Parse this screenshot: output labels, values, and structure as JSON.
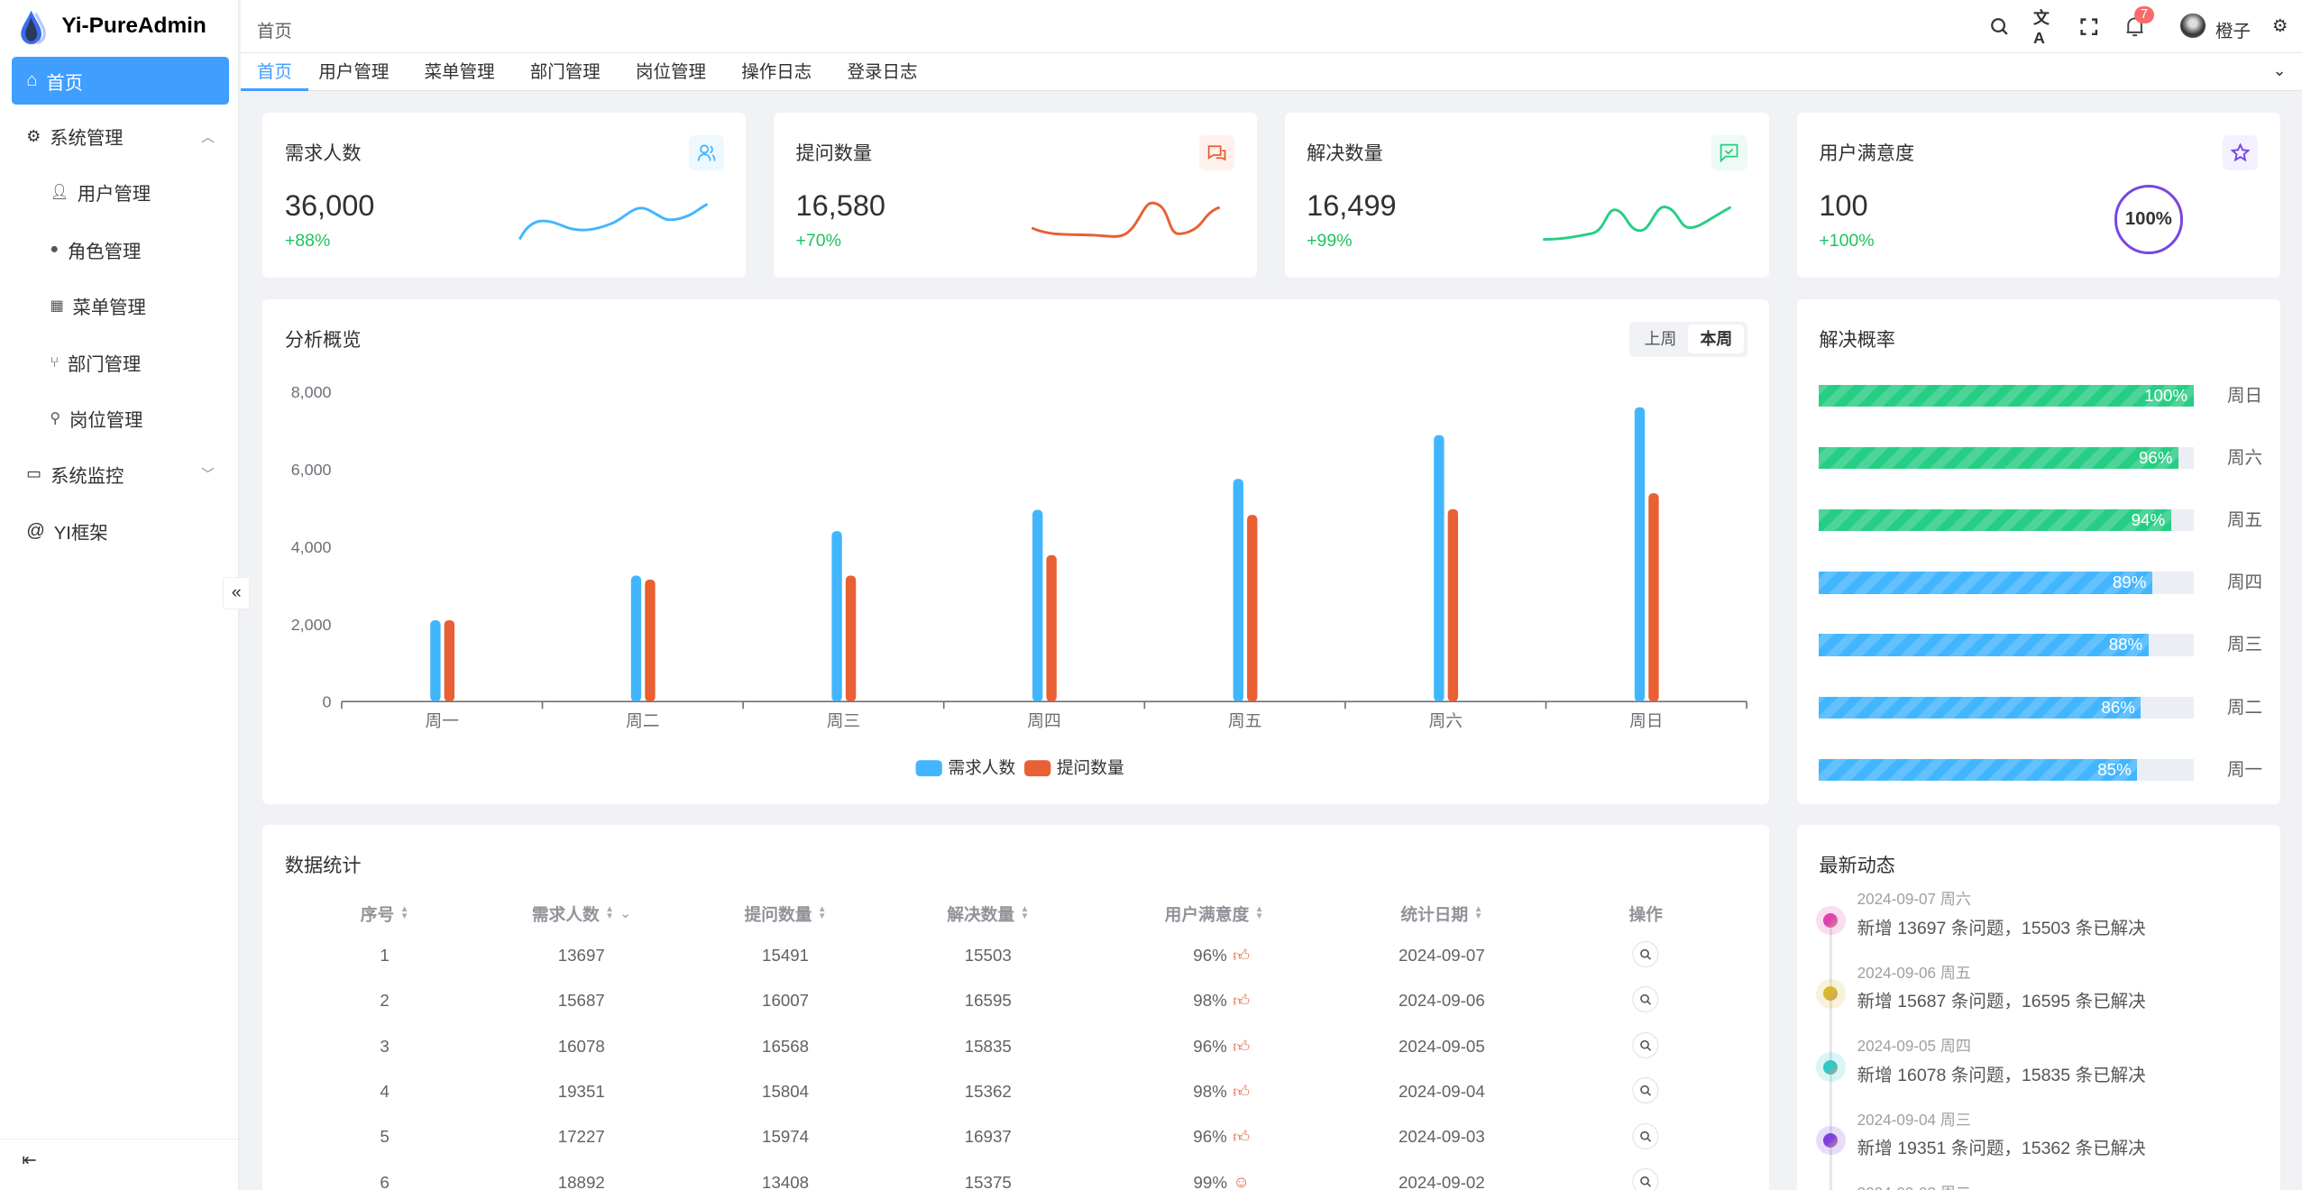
{
  "app": {
    "title": "Yi-PureAdmin"
  },
  "sidebar": {
    "items": [
      {
        "label": "首页",
        "icon": "home-icon",
        "active": true
      },
      {
        "label": "系统管理",
        "icon": "gear-icon",
        "expanded": true
      },
      {
        "label": "用户管理",
        "icon": "user-icon"
      },
      {
        "label": "角色管理",
        "icon": "role-icon"
      },
      {
        "label": "菜单管理",
        "icon": "menu-grid-icon"
      },
      {
        "label": "部门管理",
        "icon": "branch-icon"
      },
      {
        "label": "岗位管理",
        "icon": "org-icon"
      },
      {
        "label": "系统监控",
        "icon": "monitor-icon"
      },
      {
        "label": "YI框架",
        "icon": "at-icon"
      }
    ]
  },
  "header": {
    "breadcrumb": "首页",
    "notification_count": "7",
    "user": "橙子"
  },
  "tabs": [
    "首页",
    "用户管理",
    "菜单管理",
    "部门管理",
    "岗位管理",
    "操作日志",
    "登录日志"
  ],
  "stats": [
    {
      "title": "需求人数",
      "value": "36,000",
      "change": "+88%",
      "color": "#41b6ff"
    },
    {
      "title": "提问数量",
      "value": "16,580",
      "change": "+70%",
      "color": "#e85f33"
    },
    {
      "title": "解决数量",
      "value": "16,499",
      "change": "+99%",
      "color": "#26ce83"
    },
    {
      "title": "用户满意度",
      "value": "100",
      "change": "+100%",
      "color": "#7846e5",
      "ring": "100%"
    }
  ],
  "chart_card": {
    "title": "分析概览",
    "toggle": [
      "上周",
      "本周"
    ],
    "selected": "本周"
  },
  "chart_data": {
    "type": "bar",
    "categories": [
      "周一",
      "周二",
      "周三",
      "周四",
      "周五",
      "周六",
      "周日"
    ],
    "series": [
      {
        "name": "需求人数",
        "color": "#41b6ff",
        "values": [
          2100,
          3250,
          4400,
          4950,
          5750,
          6880,
          7600
        ]
      },
      {
        "name": "提问数量",
        "color": "#e86033",
        "values": [
          2100,
          3150,
          3250,
          3780,
          4820,
          4970,
          5380
        ]
      }
    ],
    "ylim": [
      0,
      8000
    ],
    "yticks": [
      "0",
      "2,000",
      "4,000",
      "6,000",
      "8,000"
    ],
    "legend": "bottom"
  },
  "rates": {
    "title": "解决概率",
    "items": [
      {
        "pct": 100,
        "label": "100%",
        "day": "周日",
        "color": "#26ce83"
      },
      {
        "pct": 96,
        "label": "96%",
        "day": "周六",
        "color": "#26ce83"
      },
      {
        "pct": 94,
        "label": "94%",
        "day": "周五",
        "color": "#26ce83"
      },
      {
        "pct": 89,
        "label": "89%",
        "day": "周四",
        "color": "#41b6ff"
      },
      {
        "pct": 88,
        "label": "88%",
        "day": "周三",
        "color": "#41b6ff"
      },
      {
        "pct": 86,
        "label": "86%",
        "day": "周二",
        "color": "#41b6ff"
      },
      {
        "pct": 85,
        "label": "85%",
        "day": "周一",
        "color": "#41b6ff"
      }
    ]
  },
  "table": {
    "title": "数据统计",
    "columns": [
      "序号",
      "需求人数",
      "提问数量",
      "解决数量",
      "用户满意度",
      "统计日期",
      "操作"
    ],
    "rows": [
      [
        "1",
        "13697",
        "15491",
        "15503",
        "96%",
        "2024-09-07"
      ],
      [
        "2",
        "15687",
        "16007",
        "16595",
        "98%",
        "2024-09-06"
      ],
      [
        "3",
        "16078",
        "16568",
        "15835",
        "96%",
        "2024-09-05"
      ],
      [
        "4",
        "19351",
        "15804",
        "15362",
        "98%",
        "2024-09-04"
      ],
      [
        "5",
        "17227",
        "15974",
        "16937",
        "96%",
        "2024-09-03"
      ],
      [
        "6",
        "18892",
        "13408",
        "15375",
        "99%",
        "2024-09-02"
      ]
    ]
  },
  "timeline": {
    "title": "最新动态",
    "items": [
      {
        "date": "2024-09-07 周六",
        "text": "新增 13697 条问题，15503 条已解决",
        "color": "#e040b0"
      },
      {
        "date": "2024-09-06 周五",
        "text": "新增 15687 条问题，16595 条已解决",
        "color": "#d8b830"
      },
      {
        "date": "2024-09-05 周四",
        "text": "新增 16078 条问题，15835 条已解决",
        "color": "#30c8c8"
      },
      {
        "date": "2024-09-04 周三",
        "text": "新增 19351 条问题，15362 条已解决",
        "color": "#8040e0"
      },
      {
        "date": "2024-09-03 周二",
        "text": "",
        "color": "#409eff"
      }
    ]
  }
}
